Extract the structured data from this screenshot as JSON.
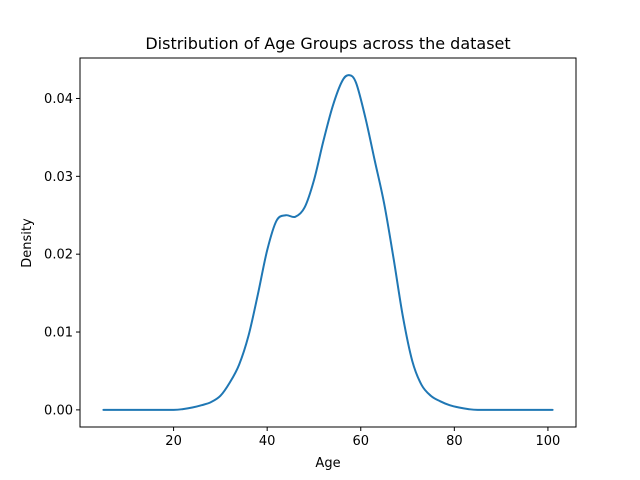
{
  "chart_data": {
    "type": "line",
    "title": "Distribution of Age Groups across the dataset",
    "xlabel": "Age",
    "ylabel": "Density",
    "xlim": [
      0,
      106
    ],
    "ylim": [
      -0.0022,
      0.0452
    ],
    "x_ticks": [
      20,
      40,
      60,
      80,
      100
    ],
    "x_tick_labels": [
      "20",
      "40",
      "60",
      "80",
      "100"
    ],
    "y_ticks": [
      0.0,
      0.01,
      0.02,
      0.03,
      0.04
    ],
    "y_tick_labels": [
      "0.00",
      "0.01",
      "0.02",
      "0.03",
      "0.04"
    ],
    "grid": false,
    "legend": "none",
    "series": [
      {
        "color": "#1f77b4",
        "x": [
          5,
          10,
          15,
          20,
          22,
          24,
          26,
          28,
          30,
          32,
          34,
          36,
          38,
          40,
          42,
          44,
          46,
          48,
          50,
          52,
          54,
          56,
          57.5,
          59,
          61,
          63,
          65,
          67,
          69,
          71,
          73,
          75,
          77,
          79,
          81,
          83,
          85,
          90,
          95,
          101
        ],
        "y": [
          0.0,
          0.0,
          0.0,
          0.0,
          0.0001,
          0.0003,
          0.0006,
          0.001,
          0.0018,
          0.0035,
          0.0058,
          0.0095,
          0.0148,
          0.0205,
          0.0243,
          0.025,
          0.0248,
          0.026,
          0.0295,
          0.0345,
          0.039,
          0.0422,
          0.043,
          0.042,
          0.0375,
          0.032,
          0.0265,
          0.0195,
          0.012,
          0.0063,
          0.0032,
          0.0018,
          0.0011,
          0.0006,
          0.0003,
          0.0001,
          0.0,
          0.0,
          0.0,
          0.0
        ]
      }
    ]
  }
}
